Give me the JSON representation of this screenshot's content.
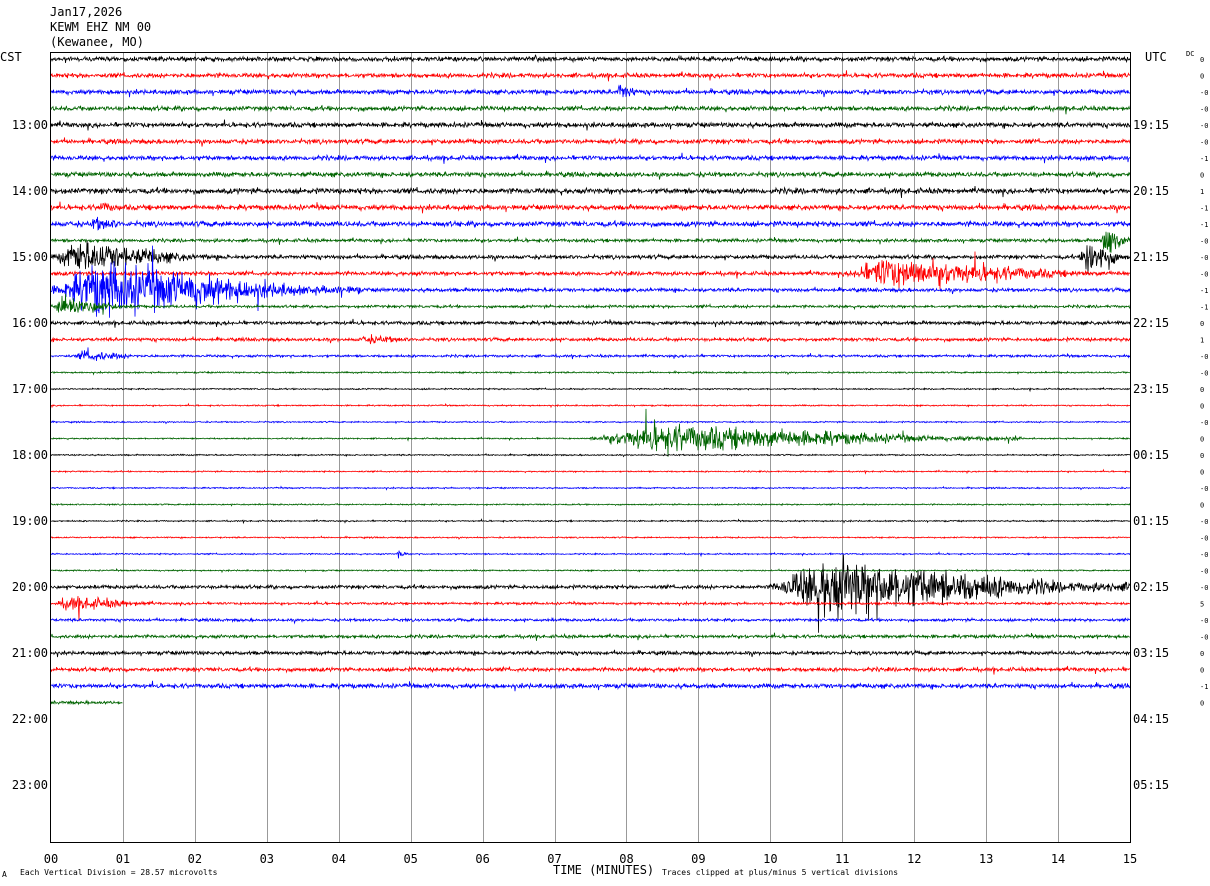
{
  "header": {
    "date": "Jan17,2026",
    "station": "KEWM EHZ NM 00",
    "location": "(Kewanee, MO)",
    "left_tz": "CST",
    "right_tz": "UTC",
    "dc_label": "DC"
  },
  "footer": {
    "scale_note": "Each Vertical Division =   28.57 microvolts",
    "xlabel": "TIME (MINUTES)",
    "clip_note": "Traces clipped at plus/minus 5 vertical divisions",
    "corner_mark": "A"
  },
  "chart_data": {
    "type": "line",
    "title": "",
    "xlabel": "TIME (MINUTES)",
    "ylabel": "",
    "xlim": [
      0,
      15
    ],
    "x_ticks": [
      "00",
      "01",
      "02",
      "03",
      "04",
      "05",
      "06",
      "07",
      "08",
      "09",
      "10",
      "11",
      "12",
      "13",
      "14",
      "15"
    ],
    "left_hour_labels": [
      "13:00",
      "14:00",
      "15:00",
      "16:00",
      "17:00",
      "18:00",
      "19:00",
      "20:00",
      "21:00",
      "22:00",
      "23:00"
    ],
    "right_hour_labels": [
      "19:15",
      "20:15",
      "21:15",
      "22:15",
      "23:15",
      "00:15",
      "01:15",
      "02:15",
      "03:15",
      "04:15",
      "05:15"
    ],
    "trace_colors": [
      "#000000",
      "#ff0000",
      "#0000ff",
      "#006400"
    ],
    "grid": true,
    "rows": [
      {
        "dc": "0",
        "amp": 3.0,
        "events": []
      },
      {
        "dc": "0",
        "amp": 3.0,
        "events": []
      },
      {
        "dc": "-0",
        "amp": 3.0,
        "events": [
          {
            "start": 7.85,
            "end": 8.25,
            "amp": 14
          }
        ]
      },
      {
        "dc": "-0",
        "amp": 3.0,
        "events": []
      },
      {
        "dc": "-0",
        "amp": 3.2,
        "events": []
      },
      {
        "dc": "-0",
        "amp": 3.0,
        "events": []
      },
      {
        "dc": "-1",
        "amp": 3.0,
        "events": []
      },
      {
        "dc": "0",
        "amp": 3.0,
        "events": []
      },
      {
        "dc": "1",
        "amp": 3.6,
        "events": []
      },
      {
        "dc": "-1",
        "amp": 3.4,
        "events": [
          {
            "start": 0.6,
            "end": 1.2,
            "amp": 8
          }
        ]
      },
      {
        "dc": "-1",
        "amp": 3.4,
        "events": [
          {
            "start": 0.5,
            "end": 1.3,
            "amp": 10
          }
        ]
      },
      {
        "dc": "-0",
        "amp": 2.2,
        "events": [
          {
            "start": 14.6,
            "end": 15.0,
            "amp": 28
          }
        ]
      },
      {
        "dc": "-0",
        "amp": 2.6,
        "events": [
          {
            "start": 0.0,
            "end": 2.5,
            "amp": 22
          },
          {
            "start": 14.3,
            "end": 15.0,
            "amp": 30
          }
        ]
      },
      {
        "dc": "-0",
        "amp": 2.6,
        "events": [
          {
            "start": 11.0,
            "end": 15.0,
            "amp": 22
          }
        ]
      },
      {
        "dc": "-1",
        "amp": 2.4,
        "events": [
          {
            "start": 0.0,
            "end": 4.3,
            "amp": 38
          }
        ]
      },
      {
        "dc": "-1",
        "amp": 1.8,
        "events": [
          {
            "start": 0.0,
            "end": 1.2,
            "amp": 16
          }
        ]
      },
      {
        "dc": "0",
        "amp": 2.4,
        "events": []
      },
      {
        "dc": "1",
        "amp": 2.2,
        "events": [
          {
            "start": 4.2,
            "end": 5.5,
            "amp": 6
          }
        ]
      },
      {
        "dc": "-0",
        "amp": 1.6,
        "events": [
          {
            "start": 0.3,
            "end": 1.5,
            "amp": 8
          }
        ]
      },
      {
        "dc": "-0",
        "amp": 1.0,
        "events": []
      },
      {
        "dc": "0",
        "amp": 0.9,
        "events": []
      },
      {
        "dc": "0",
        "amp": 0.9,
        "events": []
      },
      {
        "dc": "-0",
        "amp": 0.9,
        "events": []
      },
      {
        "dc": "0",
        "amp": 0.9,
        "events": [
          {
            "start": 7.5,
            "end": 13.5,
            "amp": 20
          }
        ]
      },
      {
        "dc": "0",
        "amp": 0.9,
        "events": []
      },
      {
        "dc": "0",
        "amp": 0.9,
        "events": []
      },
      {
        "dc": "-0",
        "amp": 0.9,
        "events": []
      },
      {
        "dc": "0",
        "amp": 0.9,
        "events": []
      },
      {
        "dc": "-0",
        "amp": 0.9,
        "events": []
      },
      {
        "dc": "-0",
        "amp": 0.9,
        "events": []
      },
      {
        "dc": "-0",
        "amp": 0.9,
        "events": [
          {
            "start": 4.8,
            "end": 5.0,
            "amp": 6
          }
        ]
      },
      {
        "dc": "-0",
        "amp": 0.9,
        "events": []
      },
      {
        "dc": "-0",
        "amp": 2.4,
        "events": [
          {
            "start": 10.0,
            "end": 15.0,
            "amp": 42
          }
        ]
      },
      {
        "dc": "5",
        "amp": 1.6,
        "events": [
          {
            "start": 0.0,
            "end": 1.8,
            "amp": 10
          }
        ]
      },
      {
        "dc": "-0",
        "amp": 1.8,
        "events": []
      },
      {
        "dc": "-0",
        "amp": 2.2,
        "events": []
      },
      {
        "dc": "0",
        "amp": 2.4,
        "events": []
      },
      {
        "dc": "0",
        "amp": 2.6,
        "events": []
      },
      {
        "dc": "-1",
        "amp": 3.0,
        "events": []
      },
      {
        "dc": "0",
        "amp": 2.0,
        "events": [],
        "end_minute": 1.0
      }
    ]
  }
}
